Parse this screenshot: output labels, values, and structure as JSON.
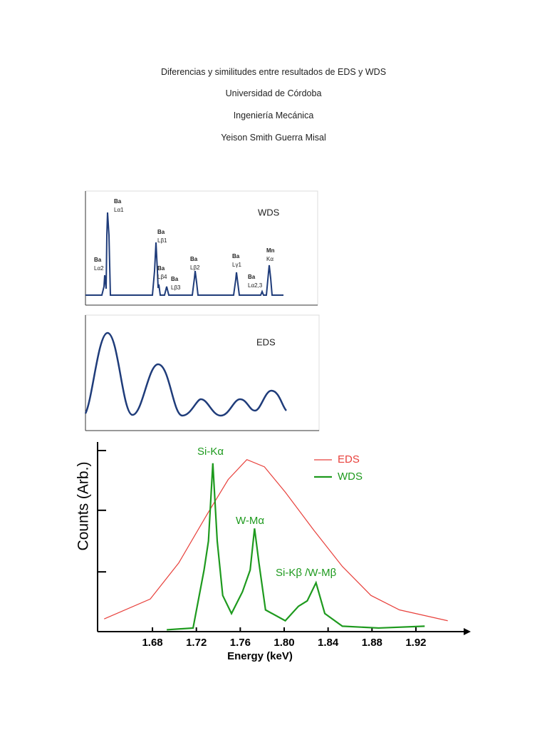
{
  "header": {
    "lines": [
      "Diferencias y similitudes entre resultados de EDS y WDS",
      "Universidad de Córdoba",
      "Ingeniería Mecánica",
      "Yeison Smith Guerra Misal"
    ]
  },
  "figures": {
    "wds": {
      "title": "WDS",
      "peaks": [
        {
          "element": "Ba",
          "line": "Lα2"
        },
        {
          "element": "Ba",
          "line": "Lα1"
        },
        {
          "element": "Ba",
          "line": "Lβ1"
        },
        {
          "element": "Ba",
          "line": "Lβ4"
        },
        {
          "element": "Ba",
          "line": "Lβ3"
        },
        {
          "element": "Ba",
          "line": "Lβ2"
        },
        {
          "element": "Ba",
          "line": "Lγ1"
        },
        {
          "element": "Ba",
          "line": "Lα2,3"
        },
        {
          "element": "Mn",
          "line": "Kα"
        }
      ]
    },
    "eds": {
      "title": "EDS"
    }
  },
  "chart_data": {
    "type": "line",
    "xlabel": "Energy (keV)",
    "ylabel": "Counts (Arb.)",
    "xlim": [
      1.63,
      1.97
    ],
    "ylim": [
      0,
      1
    ],
    "xticks": [
      1.68,
      1.72,
      1.76,
      {
        "value": 1.8,
        "label": "1.80"
      },
      1.84,
      1.88,
      1.92
    ],
    "yticks": [
      0.33,
      0.67,
      1
    ],
    "annotations": [
      "Si-Kα",
      "W-Mα",
      "Si-Kβ /W-Mβ"
    ],
    "series": [
      {
        "name": "EDS",
        "color": "#e8413c",
        "x": [
          1.636,
          1.678,
          1.704,
          1.73,
          1.749,
          1.766,
          1.782,
          1.801,
          1.827,
          1.853,
          1.879,
          1.905,
          1.949
        ],
        "values": [
          0.07,
          0.18,
          0.38,
          0.65,
          0.84,
          0.95,
          0.91,
          0.77,
          0.56,
          0.36,
          0.2,
          0.12,
          0.06
        ]
      },
      {
        "name": "WDS",
        "color": "#1e9a1e",
        "x": [
          1.693,
          1.717,
          1.727,
          1.731,
          1.735,
          1.739,
          1.744,
          1.752,
          1.762,
          1.769,
          1.773,
          1.777,
          1.783,
          1.801,
          1.813,
          1.821,
          1.829,
          1.837,
          1.853,
          1.886,
          1.928
        ],
        "values": [
          0.01,
          0.02,
          0.34,
          0.5,
          0.93,
          0.5,
          0.2,
          0.1,
          0.22,
          0.34,
          0.57,
          0.38,
          0.12,
          0.06,
          0.14,
          0.17,
          0.27,
          0.1,
          0.03,
          0.02,
          0.03
        ]
      }
    ]
  }
}
